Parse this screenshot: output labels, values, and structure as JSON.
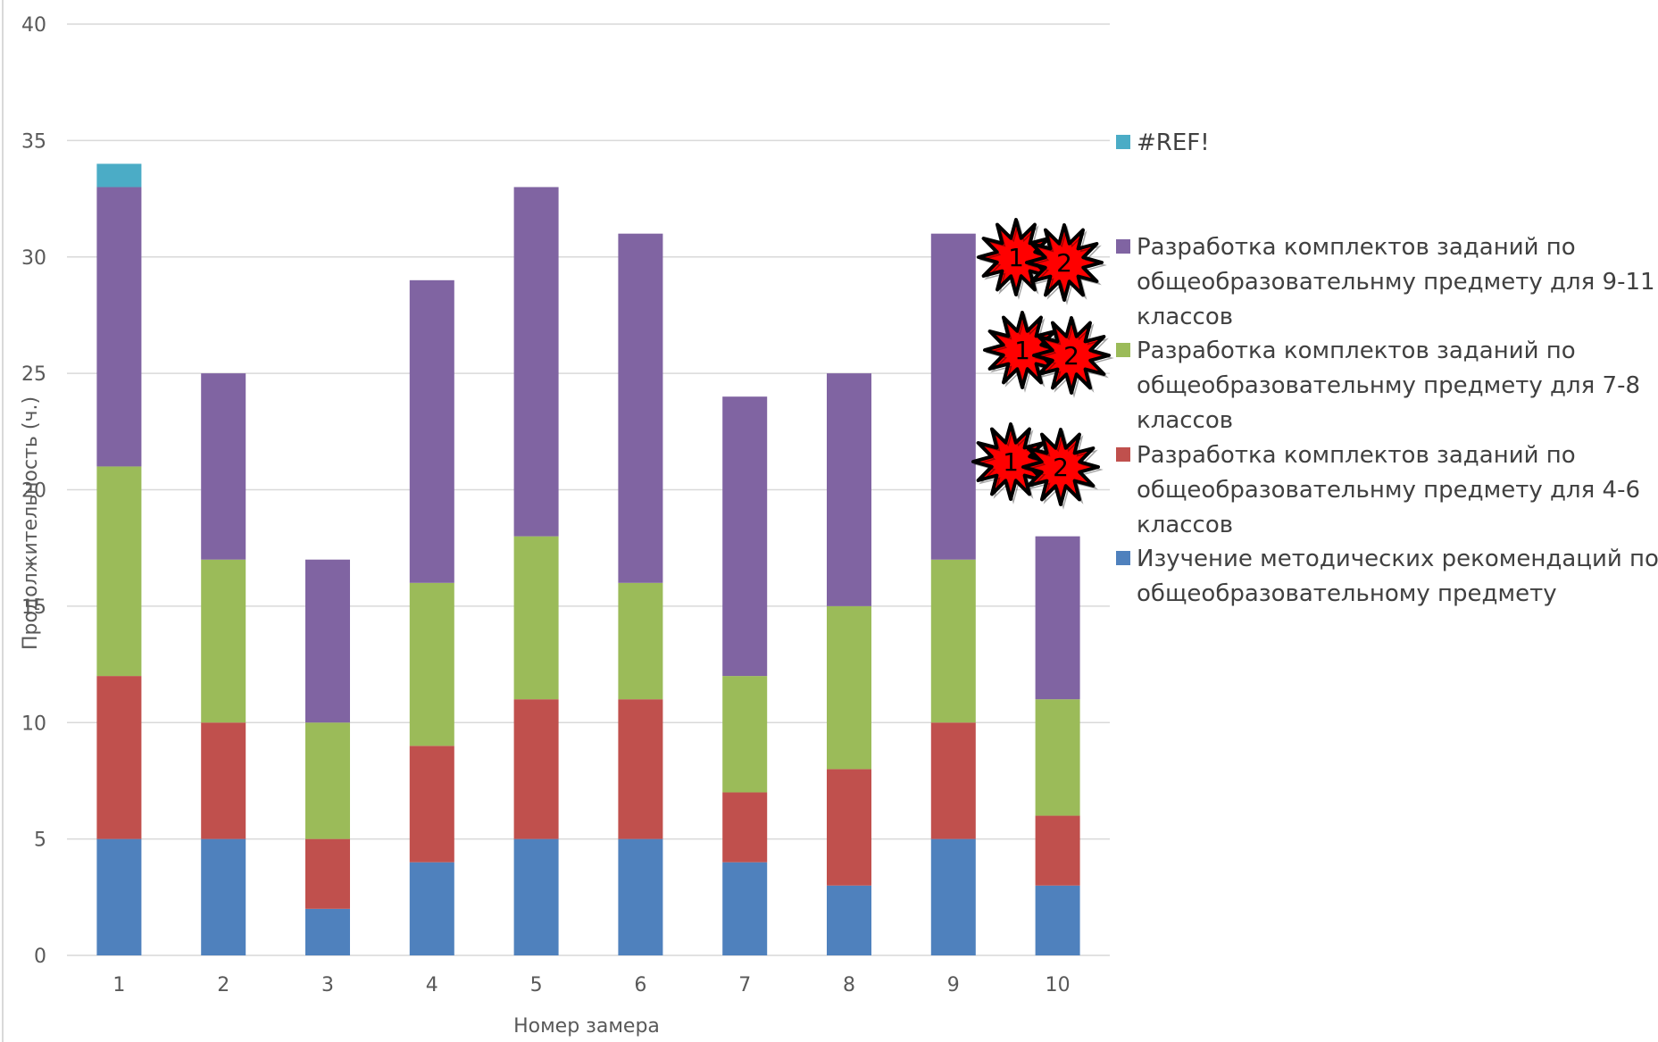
{
  "chart_data": {
    "type": "bar",
    "stacked": true,
    "title": "",
    "xlabel": "Номер замера",
    "ylabel": "Продолжительность (ч.)",
    "ylim": [
      0,
      40
    ],
    "yticks": [
      0,
      5,
      10,
      15,
      20,
      25,
      30,
      35,
      40
    ],
    "grid": true,
    "legend_position": "right",
    "categories": [
      "1",
      "2",
      "3",
      "4",
      "5",
      "6",
      "7",
      "8",
      "9",
      "10"
    ],
    "series": [
      {
        "name": "Изучение методических рекомендаций по общеобразовательному предмету",
        "color": "#4f81bd",
        "values": [
          5,
          5,
          2,
          4,
          5,
          5,
          4,
          3,
          5,
          3
        ]
      },
      {
        "name": "Разработка комплектов заданий по общеобразовательнму предмету для 4-6 классов",
        "color": "#c0504d",
        "values": [
          7,
          5,
          3,
          5,
          6,
          6,
          3,
          5,
          5,
          3
        ]
      },
      {
        "name": "Разработка комплектов заданий по общеобразовательнму предмету для 7-8 классов",
        "color": "#9bbb59",
        "values": [
          9,
          7,
          5,
          7,
          7,
          5,
          5,
          7,
          7,
          5
        ]
      },
      {
        "name": "Разработка комплектов заданий по общеобразовательнму предмету для 9-11 классов",
        "color": "#8064a2",
        "values": [
          12,
          8,
          7,
          13,
          15,
          15,
          12,
          10,
          14,
          7
        ]
      },
      {
        "name": "#REF!",
        "color": "#4bacc6",
        "values": [
          1,
          0,
          0,
          0,
          0,
          0,
          0,
          0,
          0,
          0
        ]
      }
    ],
    "legend": [
      {
        "lines": [
          "#REF!"
        ],
        "color": "#4bacc6"
      },
      {
        "lines": [
          "Разработка комплектов заданий по",
          "общеобразовательнму предмету для 9-11",
          "классов"
        ],
        "color": "#8064a2"
      },
      {
        "lines": [
          "Разработка комплектов заданий по",
          "общеобразовательнму предмету для 7-8",
          "классов"
        ],
        "color": "#9bbb59"
      },
      {
        "lines": [
          "Разработка комплектов заданий по",
          "общеобразовательнму предмету для 4-6",
          "классов"
        ],
        "color": "#c0504d"
      },
      {
        "lines": [
          "Изучение методических рекомендаций по",
          "общеобразовательному предмету"
        ],
        "color": "#4f81bd"
      }
    ],
    "badges": [
      {
        "labels": [
          "1",
          "2"
        ]
      },
      {
        "labels": [
          "1",
          "2"
        ]
      },
      {
        "labels": [
          "1",
          "2"
        ]
      }
    ]
  }
}
